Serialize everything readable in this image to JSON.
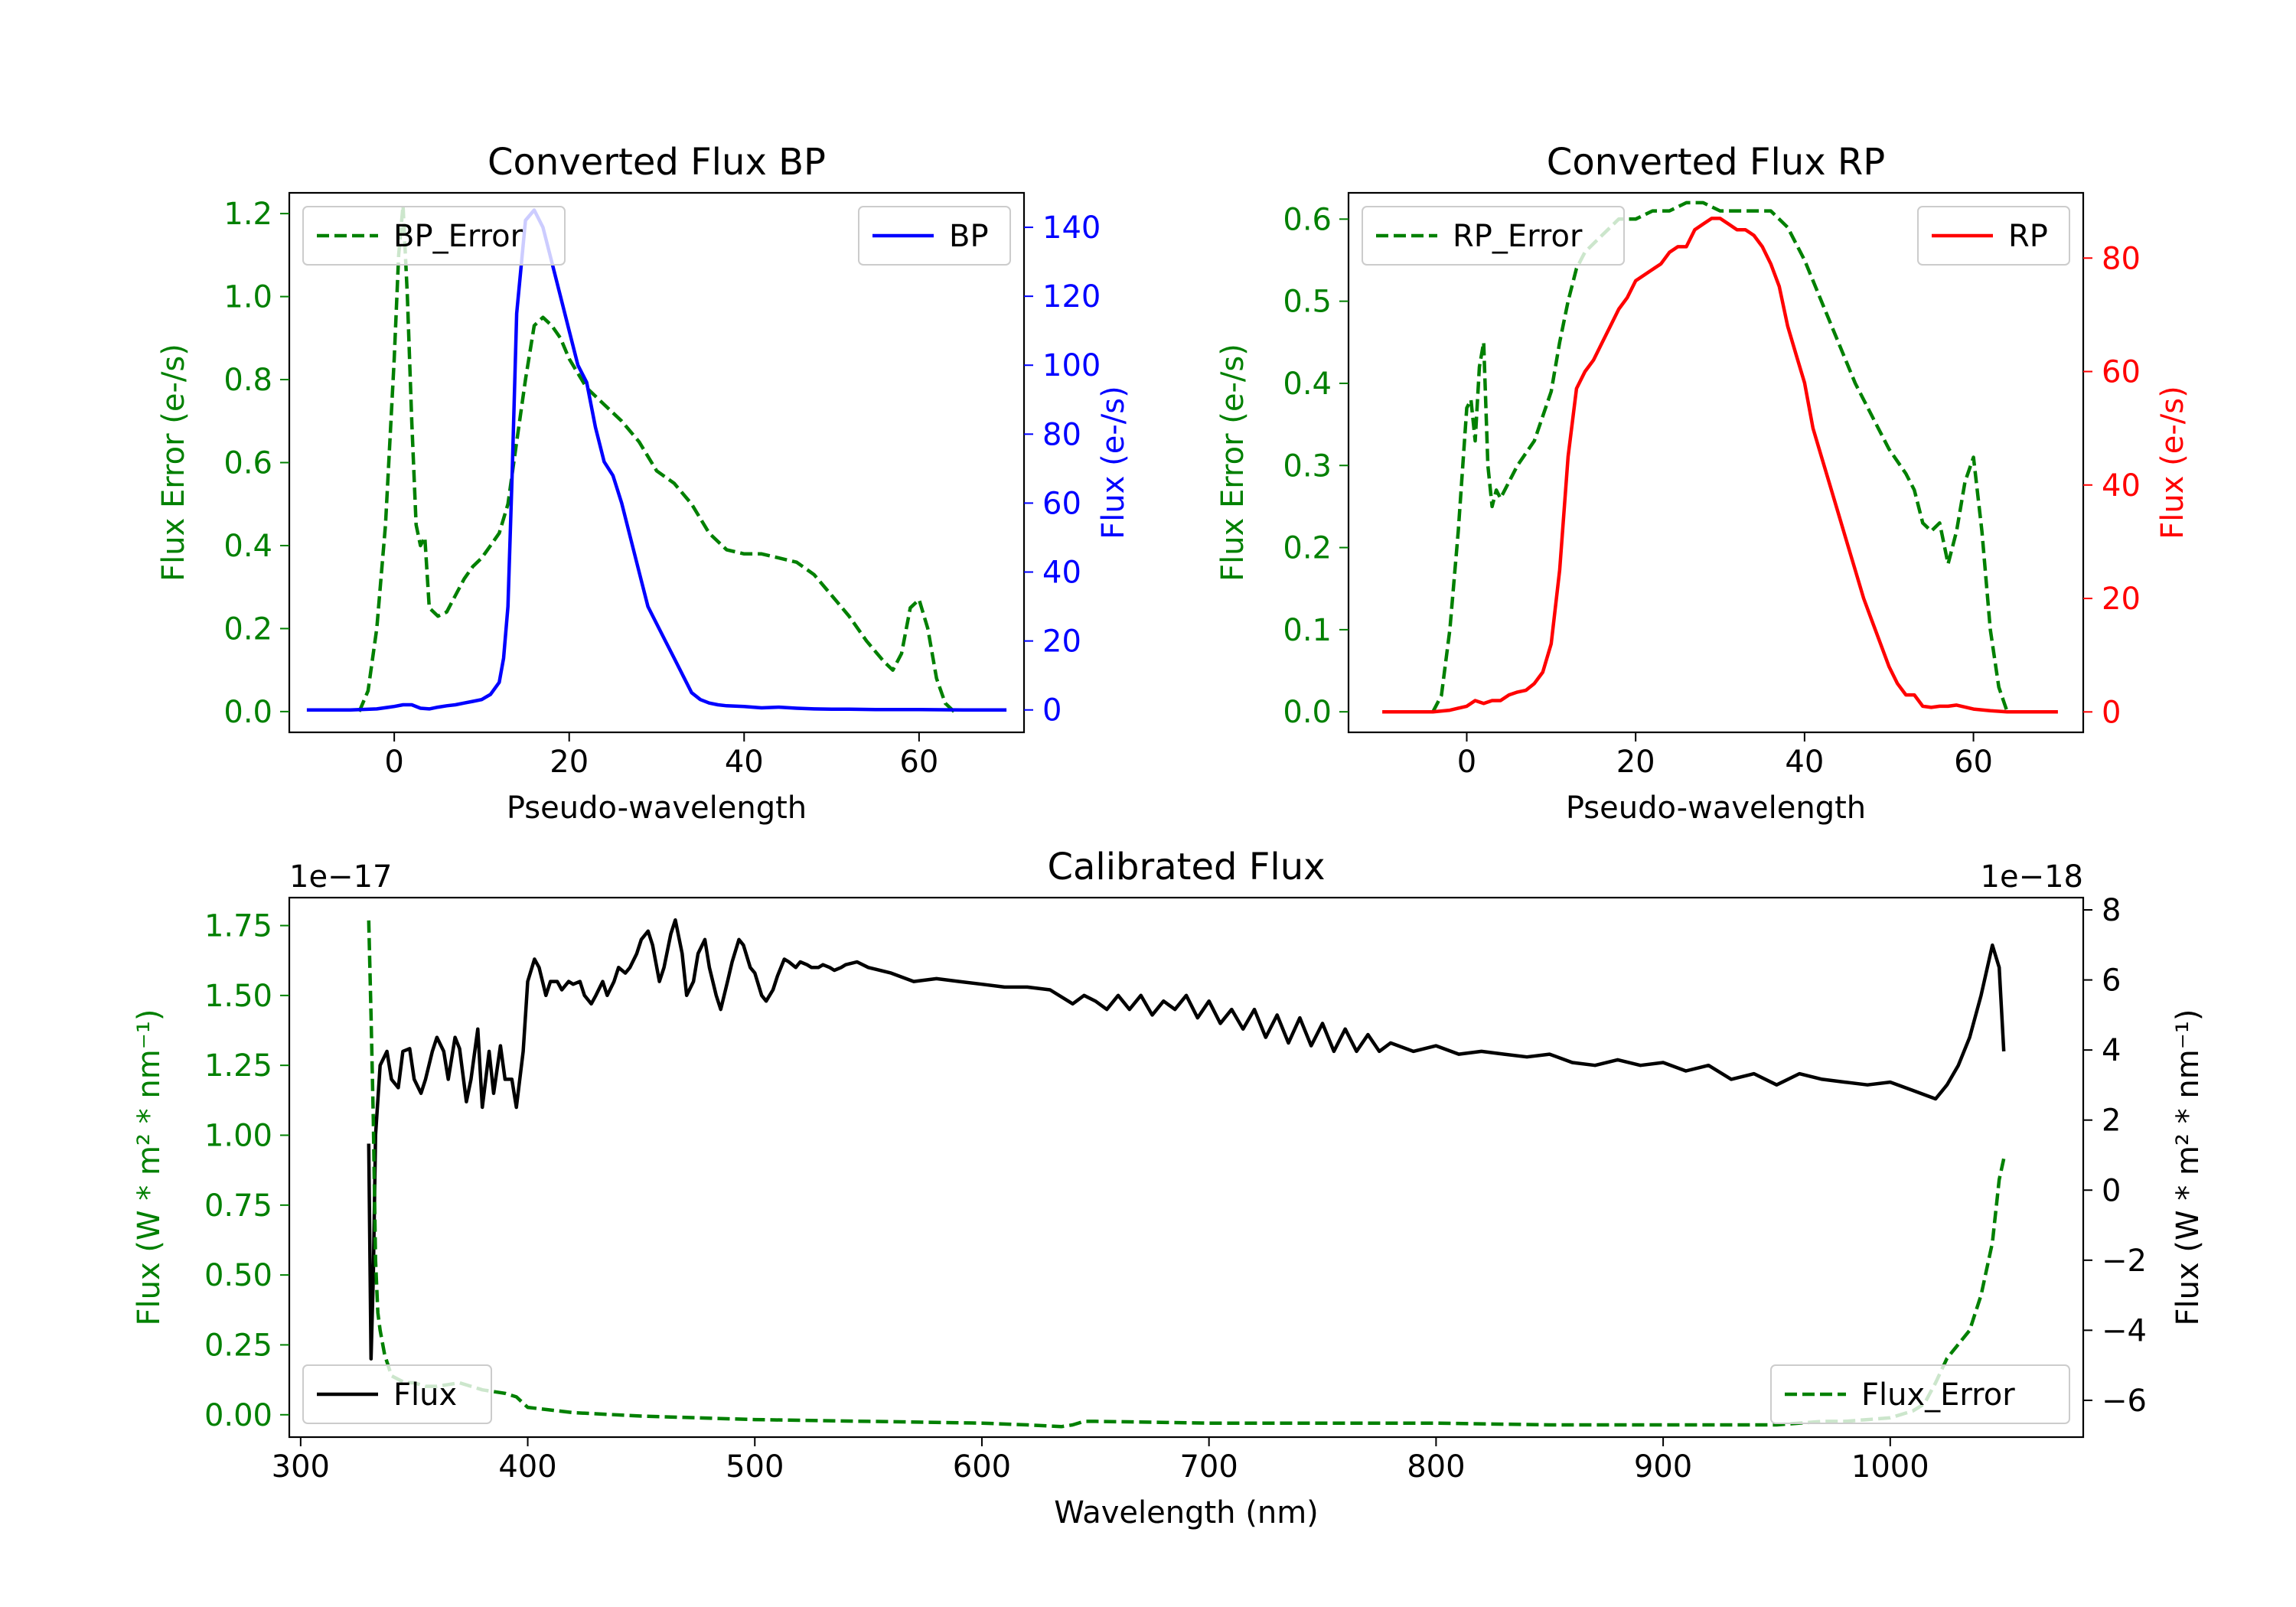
{
  "chart_data": [
    {
      "type": "line",
      "title": "Converted Flux BP",
      "xlabel": "Pseudo-wavelength",
      "ylabel_left": "Flux Error (e-/s)",
      "ylabel_right": "Flux (e-/s)",
      "xlim": [
        -12,
        72
      ],
      "ylim_left": [
        -0.05,
        1.25
      ],
      "ylim_right": [
        -6.5,
        150
      ],
      "xticks": [
        0,
        20,
        40,
        60
      ],
      "yticks_left": [
        0.0,
        0.2,
        0.4,
        0.6,
        0.8,
        1.0,
        1.2
      ],
      "yticks_right": [
        0,
        20,
        40,
        60,
        80,
        100,
        120,
        140
      ],
      "legend_left": {
        "label": "BP_Error",
        "position": "upper left"
      },
      "legend_right": {
        "label": "BP",
        "position": "upper right"
      },
      "colors": {
        "error": "#008000",
        "flux": "#0000ff",
        "left_axis": "#008000",
        "right_axis": "#0000ff"
      },
      "series": [
        {
          "name": "BP_Error",
          "axis": "left",
          "style": "dashed",
          "color": "#008000",
          "x": [
            -4,
            -3,
            -2,
            -1,
            0,
            0.5,
            1,
            1.5,
            2,
            2.5,
            3,
            3.5,
            4,
            5,
            6,
            7,
            8,
            9,
            10,
            11,
            12,
            13,
            14,
            15,
            16,
            17,
            18,
            19,
            20,
            22,
            24,
            26,
            28,
            30,
            32,
            34,
            36,
            38,
            40,
            42,
            44,
            46,
            48,
            50,
            52,
            54,
            56,
            57,
            58,
            59,
            60,
            61,
            62,
            63,
            64
          ],
          "y": [
            0.0,
            0.05,
            0.2,
            0.45,
            0.85,
            1.1,
            1.22,
            1.0,
            0.7,
            0.45,
            0.4,
            0.42,
            0.25,
            0.23,
            0.24,
            0.28,
            0.32,
            0.35,
            0.37,
            0.4,
            0.43,
            0.5,
            0.65,
            0.8,
            0.93,
            0.95,
            0.93,
            0.9,
            0.85,
            0.78,
            0.74,
            0.7,
            0.65,
            0.58,
            0.55,
            0.5,
            0.43,
            0.39,
            0.38,
            0.38,
            0.37,
            0.36,
            0.33,
            0.28,
            0.23,
            0.17,
            0.12,
            0.1,
            0.14,
            0.25,
            0.27,
            0.2,
            0.08,
            0.02,
            0.0
          ]
        },
        {
          "name": "BP",
          "axis": "right",
          "style": "solid",
          "color": "#0000ff",
          "x": [
            -10,
            -5,
            -2,
            0,
            1,
            2,
            3,
            4,
            5,
            6,
            7,
            8,
            9,
            10,
            11,
            12,
            12.5,
            13,
            13.5,
            14,
            15,
            16,
            17,
            18,
            19,
            20,
            21,
            22,
            23,
            24,
            25,
            26,
            27,
            28,
            29,
            30,
            31,
            32,
            33,
            34,
            35,
            36,
            37,
            38,
            40,
            42,
            44,
            46,
            48,
            50,
            52,
            55,
            60,
            65,
            70
          ],
          "y": [
            0,
            0,
            0.3,
            1,
            1.5,
            1.5,
            0.5,
            0.3,
            0.8,
            1.2,
            1.5,
            2.0,
            2.5,
            3.0,
            4.5,
            8,
            15,
            30,
            70,
            115,
            142,
            145,
            140,
            130,
            120,
            110,
            100,
            95,
            82,
            72,
            68,
            60,
            50,
            40,
            30,
            25,
            20,
            15,
            10,
            5,
            3,
            2,
            1.5,
            1.2,
            1,
            0.6,
            0.8,
            0.5,
            0.3,
            0.2,
            0.2,
            0.1,
            0.1,
            0,
            0
          ]
        }
      ]
    },
    {
      "type": "line",
      "title": "Converted Flux RP",
      "xlabel": "Pseudo-wavelength",
      "ylabel_left": "Flux Error (e-/s)",
      "ylabel_right": "Flux (e-/s)",
      "xlim": [
        -14,
        73
      ],
      "ylim_left": [
        -0.025,
        0.632
      ],
      "ylim_right": [
        -3.6,
        91.5
      ],
      "xticks": [
        0,
        20,
        40,
        60
      ],
      "yticks_left": [
        0.0,
        0.1,
        0.2,
        0.3,
        0.4,
        0.5,
        0.6
      ],
      "yticks_right": [
        0,
        20,
        40,
        60,
        80
      ],
      "legend_left": {
        "label": "RP_Error",
        "position": "upper left"
      },
      "legend_right": {
        "label": "RP",
        "position": "upper right"
      },
      "colors": {
        "error": "#008000",
        "flux": "#ff0000",
        "left_axis": "#008000",
        "right_axis": "#ff0000"
      },
      "series": [
        {
          "name": "RP_Error",
          "axis": "left",
          "style": "dashed",
          "color": "#008000",
          "x": [
            -4,
            -3,
            -2,
            -1,
            0,
            0.5,
            1,
            1.5,
            2,
            2.5,
            3,
            3.5,
            4,
            5,
            6,
            8,
            10,
            11,
            12,
            13,
            14,
            15,
            16,
            18,
            20,
            22,
            24,
            26,
            28,
            30,
            32,
            34,
            36,
            38,
            40,
            42,
            44,
            46,
            48,
            50,
            52,
            53,
            54,
            55,
            56,
            57,
            58,
            59,
            60,
            61,
            62,
            63,
            64
          ],
          "y": [
            0.0,
            0.02,
            0.1,
            0.22,
            0.37,
            0.38,
            0.33,
            0.42,
            0.45,
            0.3,
            0.25,
            0.27,
            0.26,
            0.28,
            0.3,
            0.33,
            0.39,
            0.45,
            0.5,
            0.54,
            0.56,
            0.57,
            0.58,
            0.6,
            0.6,
            0.61,
            0.61,
            0.62,
            0.62,
            0.61,
            0.61,
            0.61,
            0.61,
            0.59,
            0.55,
            0.5,
            0.45,
            0.4,
            0.36,
            0.32,
            0.29,
            0.27,
            0.23,
            0.22,
            0.23,
            0.18,
            0.22,
            0.28,
            0.31,
            0.22,
            0.1,
            0.03,
            0.0
          ]
        },
        {
          "name": "RP",
          "axis": "right",
          "style": "solid",
          "color": "#ff0000",
          "x": [
            -10,
            -4,
            -2,
            0,
            1,
            2,
            3,
            4,
            5,
            6,
            7,
            8,
            9,
            10,
            11,
            12,
            13,
            14,
            15,
            16,
            17,
            18,
            19,
            20,
            21,
            22,
            23,
            24,
            25,
            26,
            27,
            28,
            29,
            30,
            31,
            32,
            33,
            34,
            35,
            36,
            37,
            38,
            39,
            40,
            41,
            42,
            43,
            44,
            45,
            46,
            47,
            48,
            49,
            50,
            51,
            52,
            53,
            54,
            55,
            56,
            57,
            58,
            60,
            62,
            64,
            66,
            70
          ],
          "y": [
            0,
            0,
            0.3,
            1,
            2,
            1.5,
            2,
            2.0,
            3,
            3.5,
            3.8,
            5,
            7,
            12,
            25,
            45,
            57,
            60,
            62,
            65,
            68,
            71,
            73,
            76,
            77,
            78,
            79,
            81,
            82,
            82,
            85,
            86,
            87,
            87,
            86,
            85,
            85,
            84,
            82,
            79,
            75,
            68,
            63,
            58,
            50,
            45,
            40,
            35,
            30,
            25,
            20,
            16,
            12,
            8,
            5,
            3,
            3,
            1,
            0.8,
            1,
            1,
            1.2,
            0.5,
            0.2,
            0,
            0,
            0
          ]
        }
      ]
    },
    {
      "type": "line",
      "title": "Calibrated Flux",
      "xlabel": "Wavelength (nm)",
      "ylabel_left": "Flux (W * m² * nm⁻¹)",
      "ylabel_right": "Flux (W * m² * nm⁻¹)",
      "left_offset_label": "1e−17",
      "right_offset_label": "1e−18",
      "xlim": [
        295,
        1085
      ],
      "ylim_left": [
        -0.08,
        1.85
      ],
      "ylim_right": [
        -7.05,
        8.35
      ],
      "xticks": [
        300,
        400,
        500,
        600,
        700,
        800,
        900,
        1000
      ],
      "yticks_left": [
        0.0,
        0.25,
        0.5,
        0.75,
        1.0,
        1.25,
        1.5,
        1.75
      ],
      "yticks_left_labels": [
        "0.00",
        "0.25",
        "0.50",
        "0.75",
        "1.00",
        "1.25",
        "1.50",
        "1.75"
      ],
      "yticks_right": [
        -6,
        -4,
        -2,
        0,
        2,
        4,
        6,
        8
      ],
      "yticks_right_labels": [
        "−6",
        "−4",
        "−2",
        "0",
        "2",
        "4",
        "6",
        "8"
      ],
      "legend_left": {
        "label": "Flux",
        "position": "lower left"
      },
      "legend_right": {
        "label": "Flux_Error",
        "position": "lower right"
      },
      "colors": {
        "flux": "#000000",
        "error": "#008000",
        "left_axis": "#008000",
        "right_axis": "#000000"
      },
      "series": [
        {
          "name": "Flux",
          "axis": "left",
          "style": "solid",
          "color": "#000000",
          "x": [
            330,
            331,
            332,
            333,
            335,
            338,
            340,
            343,
            345,
            348,
            350,
            353,
            355,
            358,
            360,
            363,
            365,
            368,
            370,
            373,
            375,
            378,
            380,
            383,
            385,
            388,
            390,
            393,
            395,
            398,
            400,
            403,
            405,
            408,
            410,
            413,
            415,
            418,
            420,
            423,
            425,
            428,
            430,
            433,
            435,
            438,
            440,
            443,
            445,
            448,
            450,
            453,
            455,
            458,
            460,
            463,
            465,
            468,
            470,
            473,
            475,
            478,
            480,
            483,
            485,
            488,
            490,
            493,
            495,
            498,
            500,
            503,
            505,
            508,
            510,
            513,
            515,
            518,
            520,
            523,
            525,
            528,
            530,
            533,
            535,
            538,
            540,
            545,
            550,
            560,
            570,
            580,
            590,
            600,
            610,
            620,
            630,
            640,
            645,
            650,
            655,
            660,
            665,
            670,
            675,
            680,
            685,
            690,
            695,
            700,
            705,
            710,
            715,
            720,
            725,
            730,
            735,
            740,
            745,
            750,
            755,
            760,
            765,
            770,
            775,
            780,
            790,
            800,
            810,
            820,
            830,
            840,
            850,
            860,
            870,
            880,
            890,
            900,
            910,
            920,
            930,
            940,
            950,
            960,
            970,
            980,
            990,
            1000,
            1010,
            1020,
            1025,
            1030,
            1035,
            1040,
            1045,
            1048,
            1050
          ],
          "y": [
            0.97,
            0.2,
            0.5,
            1.0,
            1.25,
            1.3,
            1.2,
            1.17,
            1.3,
            1.31,
            1.2,
            1.15,
            1.2,
            1.3,
            1.35,
            1.3,
            1.2,
            1.35,
            1.31,
            1.12,
            1.2,
            1.38,
            1.1,
            1.3,
            1.15,
            1.32,
            1.2,
            1.2,
            1.1,
            1.3,
            1.55,
            1.63,
            1.6,
            1.5,
            1.55,
            1.55,
            1.52,
            1.55,
            1.54,
            1.55,
            1.5,
            1.47,
            1.5,
            1.55,
            1.5,
            1.55,
            1.6,
            1.58,
            1.6,
            1.65,
            1.7,
            1.73,
            1.68,
            1.55,
            1.6,
            1.72,
            1.77,
            1.65,
            1.5,
            1.55,
            1.65,
            1.7,
            1.6,
            1.5,
            1.45,
            1.55,
            1.62,
            1.7,
            1.68,
            1.6,
            1.58,
            1.5,
            1.48,
            1.52,
            1.57,
            1.63,
            1.62,
            1.6,
            1.62,
            1.61,
            1.6,
            1.6,
            1.61,
            1.6,
            1.59,
            1.6,
            1.61,
            1.62,
            1.6,
            1.58,
            1.55,
            1.56,
            1.55,
            1.54,
            1.53,
            1.53,
            1.52,
            1.47,
            1.5,
            1.48,
            1.45,
            1.5,
            1.45,
            1.5,
            1.43,
            1.48,
            1.45,
            1.5,
            1.42,
            1.48,
            1.4,
            1.45,
            1.38,
            1.45,
            1.35,
            1.43,
            1.33,
            1.42,
            1.32,
            1.4,
            1.3,
            1.38,
            1.3,
            1.36,
            1.3,
            1.33,
            1.3,
            1.32,
            1.29,
            1.3,
            1.29,
            1.28,
            1.29,
            1.26,
            1.25,
            1.27,
            1.25,
            1.26,
            1.23,
            1.25,
            1.2,
            1.22,
            1.18,
            1.22,
            1.2,
            1.19,
            1.18,
            1.19,
            1.16,
            1.13,
            1.18,
            1.25,
            1.35,
            1.5,
            1.68,
            1.6,
            1.3
          ]
        },
        {
          "name": "Flux_Error",
          "axis": "right",
          "style": "dashed",
          "color": "#008000",
          "x": [
            330,
            331,
            332,
            333,
            334,
            335,
            337,
            340,
            343,
            346,
            350,
            355,
            360,
            365,
            370,
            375,
            380,
            385,
            390,
            395,
            400,
            420,
            450,
            500,
            550,
            600,
            620,
            635,
            640,
            645,
            650,
            700,
            750,
            800,
            850,
            900,
            950,
            970,
            980,
            990,
            1000,
            1010,
            1015,
            1020,
            1025,
            1030,
            1035,
            1040,
            1045,
            1048,
            1050
          ],
          "y": [
            7.7,
            5,
            2,
            -2,
            -3.5,
            -4,
            -4.7,
            -5.3,
            -5.4,
            -5.5,
            -5.5,
            -5.6,
            -5.6,
            -5.55,
            -5.5,
            -5.6,
            -5.7,
            -5.75,
            -5.8,
            -5.9,
            -6.2,
            -6.35,
            -6.45,
            -6.55,
            -6.6,
            -6.65,
            -6.7,
            -6.75,
            -6.7,
            -6.6,
            -6.6,
            -6.65,
            -6.65,
            -6.65,
            -6.7,
            -6.7,
            -6.7,
            -6.6,
            -6.6,
            -6.55,
            -6.5,
            -6.3,
            -6.1,
            -5.5,
            -4.8,
            -4.4,
            -4.0,
            -3.0,
            -1.5,
            0.3,
            0.9
          ]
        }
      ]
    }
  ]
}
